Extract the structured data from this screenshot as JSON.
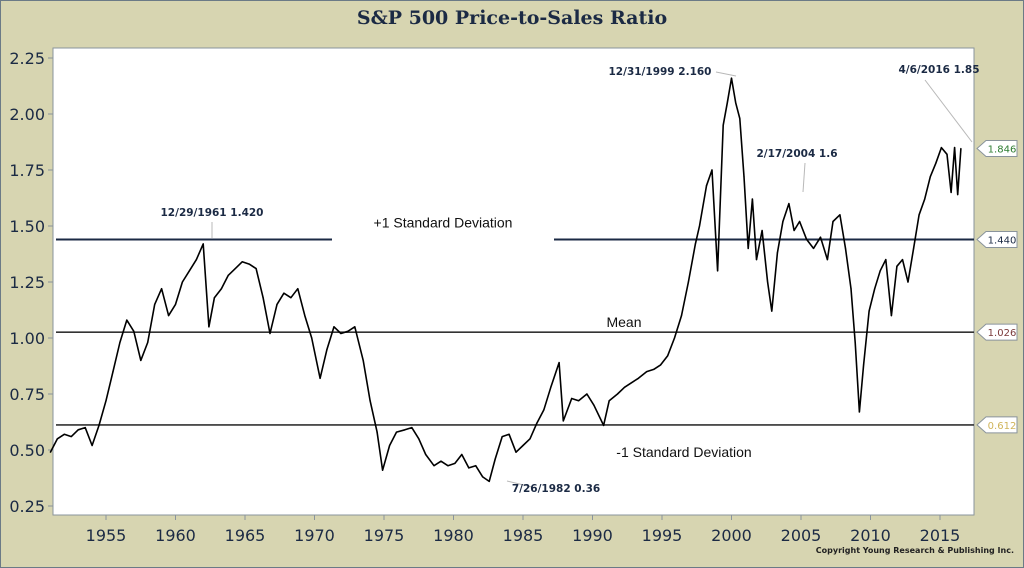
{
  "chart_data": {
    "type": "line",
    "title": "S&P 500 Price-to-Sales Ratio",
    "xlabel": "",
    "ylabel": "",
    "xlim": [
      1951.0,
      2017.2
    ],
    "ylim": [
      0.22,
      2.3
    ],
    "x_ticks": [
      1955,
      1960,
      1965,
      1970,
      1975,
      1980,
      1985,
      1990,
      1995,
      2000,
      2005,
      2010,
      2015
    ],
    "y_ticks": [
      "0.25",
      "0.50",
      "0.75",
      "1.00",
      "1.25",
      "1.50",
      "1.75",
      "2.00",
      "2.25"
    ],
    "grid": false,
    "series": [
      {
        "name": "Price-to-Sales Ratio",
        "x": [
          1951.0,
          1951.5,
          1952.0,
          1952.5,
          1953.0,
          1953.5,
          1954.0,
          1954.5,
          1955.0,
          1955.5,
          1956.0,
          1956.5,
          1957.0,
          1957.5,
          1958.0,
          1958.5,
          1959.0,
          1959.5,
          1960.0,
          1960.5,
          1961.0,
          1961.5,
          1961.99,
          1962.4,
          1962.8,
          1963.3,
          1963.8,
          1964.3,
          1964.8,
          1965.3,
          1965.8,
          1966.3,
          1966.8,
          1967.3,
          1967.8,
          1968.3,
          1968.8,
          1969.3,
          1969.8,
          1970.4,
          1970.9,
          1971.4,
          1971.9,
          1972.4,
          1972.9,
          1973.5,
          1974.0,
          1974.5,
          1974.9,
          1975.4,
          1975.9,
          1976.5,
          1977.0,
          1977.5,
          1978.0,
          1978.6,
          1979.1,
          1979.6,
          1980.1,
          1980.6,
          1981.1,
          1981.6,
          1982.1,
          1982.57,
          1983.0,
          1983.5,
          1984.0,
          1984.5,
          1985.0,
          1985.5,
          1986.0,
          1986.5,
          1987.0,
          1987.6,
          1987.9,
          1988.5,
          1989.0,
          1989.6,
          1990.1,
          1990.8,
          1991.2,
          1991.8,
          1992.3,
          1992.8,
          1993.3,
          1993.9,
          1994.4,
          1994.9,
          1995.4,
          1995.9,
          1996.4,
          1996.9,
          1997.4,
          1997.7,
          1998.2,
          1998.6,
          1999.0,
          1999.4,
          1999.7,
          2000.0,
          2000.3,
          2000.6,
          2000.9,
          2001.2,
          2001.5,
          2001.8,
          2002.2,
          2002.6,
          2002.9,
          2003.3,
          2003.7,
          2004.13,
          2004.5,
          2004.9,
          2005.4,
          2005.9,
          2006.4,
          2006.9,
          2007.3,
          2007.8,
          2008.2,
          2008.6,
          2008.9,
          2009.2,
          2009.5,
          2009.9,
          2010.3,
          2010.7,
          2011.1,
          2011.5,
          2011.9,
          2012.3,
          2012.7,
          2013.1,
          2013.5,
          2013.9,
          2014.3,
          2014.7,
          2015.1,
          2015.5,
          2015.8,
          2016.05,
          2016.27,
          2016.5
        ],
        "y": [
          0.49,
          0.55,
          0.57,
          0.56,
          0.59,
          0.6,
          0.52,
          0.61,
          0.72,
          0.85,
          0.98,
          1.08,
          1.03,
          0.9,
          0.98,
          1.15,
          1.22,
          1.1,
          1.15,
          1.25,
          1.3,
          1.35,
          1.42,
          1.05,
          1.18,
          1.22,
          1.28,
          1.31,
          1.34,
          1.33,
          1.31,
          1.18,
          1.02,
          1.15,
          1.2,
          1.18,
          1.22,
          1.1,
          1.0,
          0.82,
          0.95,
          1.05,
          1.02,
          1.03,
          1.05,
          0.9,
          0.72,
          0.58,
          0.41,
          0.52,
          0.58,
          0.59,
          0.6,
          0.55,
          0.48,
          0.43,
          0.45,
          0.43,
          0.44,
          0.48,
          0.42,
          0.43,
          0.38,
          0.36,
          0.46,
          0.56,
          0.57,
          0.49,
          0.52,
          0.55,
          0.62,
          0.68,
          0.78,
          0.89,
          0.63,
          0.73,
          0.72,
          0.75,
          0.7,
          0.61,
          0.72,
          0.75,
          0.78,
          0.8,
          0.82,
          0.85,
          0.86,
          0.88,
          0.92,
          1.0,
          1.1,
          1.25,
          1.42,
          1.5,
          1.68,
          1.75,
          1.3,
          1.95,
          2.05,
          2.16,
          2.05,
          1.98,
          1.72,
          1.4,
          1.62,
          1.35,
          1.48,
          1.25,
          1.12,
          1.38,
          1.52,
          1.6,
          1.48,
          1.52,
          1.44,
          1.4,
          1.45,
          1.35,
          1.52,
          1.55,
          1.4,
          1.22,
          0.98,
          0.67,
          0.88,
          1.12,
          1.22,
          1.3,
          1.35,
          1.1,
          1.32,
          1.35,
          1.25,
          1.4,
          1.55,
          1.62,
          1.72,
          1.78,
          1.85,
          1.82,
          1.65,
          1.85,
          1.64,
          1.846
        ]
      },
      {
        "name": "+1 Standard Deviation",
        "value": 1.44,
        "label_text": "+1 Standard Deviation"
      },
      {
        "name": "Mean",
        "value": 1.026,
        "label_text": "Mean"
      },
      {
        "name": "-1 Standard Deviation",
        "value": 0.612,
        "label_text": "-1 Standard Deviation"
      }
    ],
    "right_axis_markers": [
      {
        "label": "1.846",
        "value": 1.846,
        "color": "#2e7d32"
      },
      {
        "label": "1.440",
        "value": 1.44,
        "color": "#1b2a44"
      },
      {
        "label": "1.026",
        "value": 1.026,
        "color": "#7b3a3a"
      },
      {
        "label": "0.612",
        "value": 0.612,
        "color": "#d0b45a"
      }
    ],
    "annotations": [
      {
        "text": "12/29/1961 1.420",
        "x": 1961.99,
        "y": 1.42
      },
      {
        "text": "12/31/1999 2.160",
        "x": 1999.99,
        "y": 2.16
      },
      {
        "text": "2/17/2004 1.6",
        "x": 2004.13,
        "y": 1.6
      },
      {
        "text": "4/6/2016 1.85",
        "x": 2016.27,
        "y": 1.85
      },
      {
        "text": "7/26/1982 0.36",
        "x": 1982.57,
        "y": 0.36
      }
    ],
    "legend": "none"
  },
  "copyright": "Copyright Young Research & Publishing Inc."
}
